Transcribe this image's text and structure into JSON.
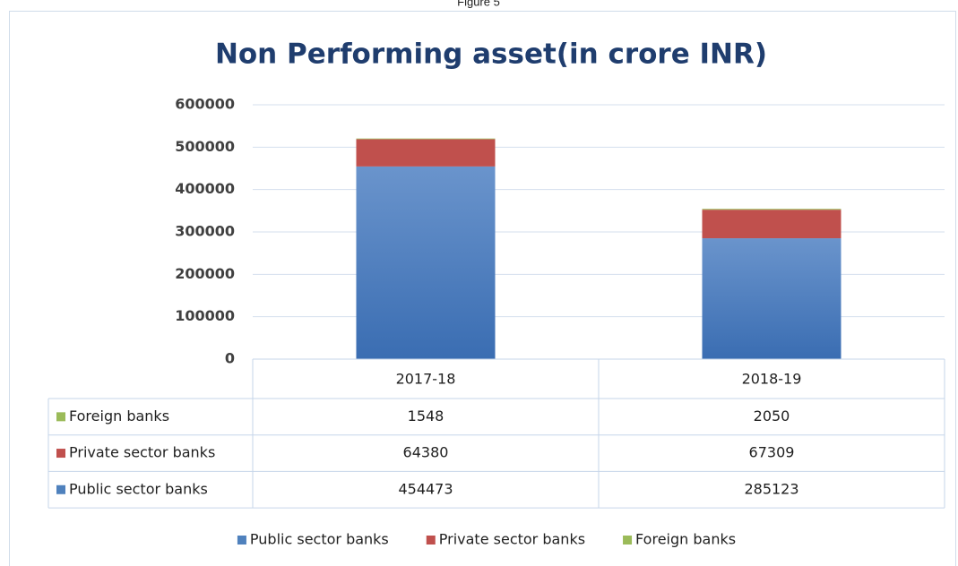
{
  "caption": "Figure 5",
  "chart_data": {
    "type": "stacked_bar",
    "title": "Non Performing asset(in crore INR)",
    "categories": [
      "2017-18",
      "2018-19"
    ],
    "series": [
      {
        "name": "Public sector banks",
        "color": "#4f81bd",
        "values": [
          454473,
          285123
        ]
      },
      {
        "name": "Private sector banks",
        "color": "#c0504d",
        "values": [
          64380,
          67309
        ]
      },
      {
        "name": "Foreign banks",
        "color": "#9bbb59",
        "values": [
          1548,
          2050
        ]
      }
    ],
    "ylim": [
      0,
      600000
    ],
    "yticks": [
      0,
      100000,
      200000,
      300000,
      400000,
      500000,
      600000
    ],
    "grid": true,
    "legend": "bottom"
  }
}
